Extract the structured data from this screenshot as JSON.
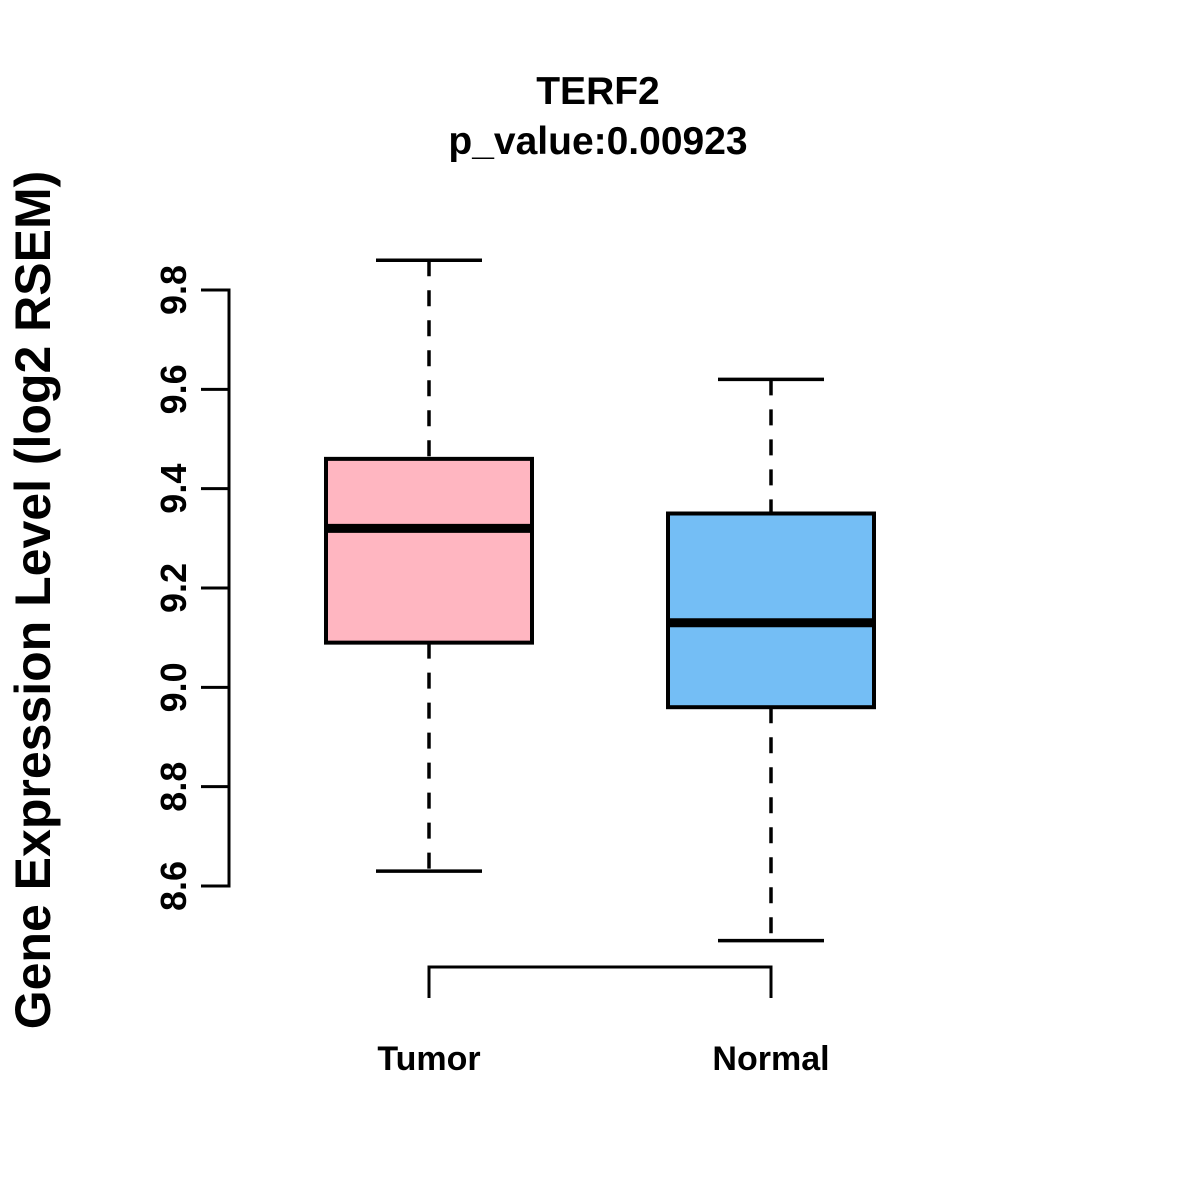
{
  "chart_data": {
    "type": "boxplot",
    "title": "TERF2",
    "subtitle": "p_value:0.00923",
    "xlabel": "",
    "ylabel": "Gene Expression Level (log2 RSEM)",
    "ylim": [
      8.6,
      9.8
    ],
    "ytick_labels": [
      "8.6",
      "8.8",
      "9.0",
      "9.2",
      "9.4",
      "9.6",
      "9.8"
    ],
    "grid": false,
    "legend": "none",
    "colors": {
      "stroke": "#000000",
      "background": "#FFFFFF",
      "tumor_fill": "#FFB6C1",
      "normal_fill": "#74BEF5"
    },
    "groups": [
      {
        "label": "Tumor",
        "fill": "#FFB6C1",
        "whisker_low": 8.63,
        "q1": 9.09,
        "median": 9.32,
        "q3": 9.46,
        "whisker_high": 9.86
      },
      {
        "label": "Normal",
        "fill": "#74BEF5",
        "whisker_low": 8.49,
        "q1": 8.96,
        "median": 9.13,
        "q3": 9.35,
        "whisker_high": 9.62
      }
    ]
  }
}
